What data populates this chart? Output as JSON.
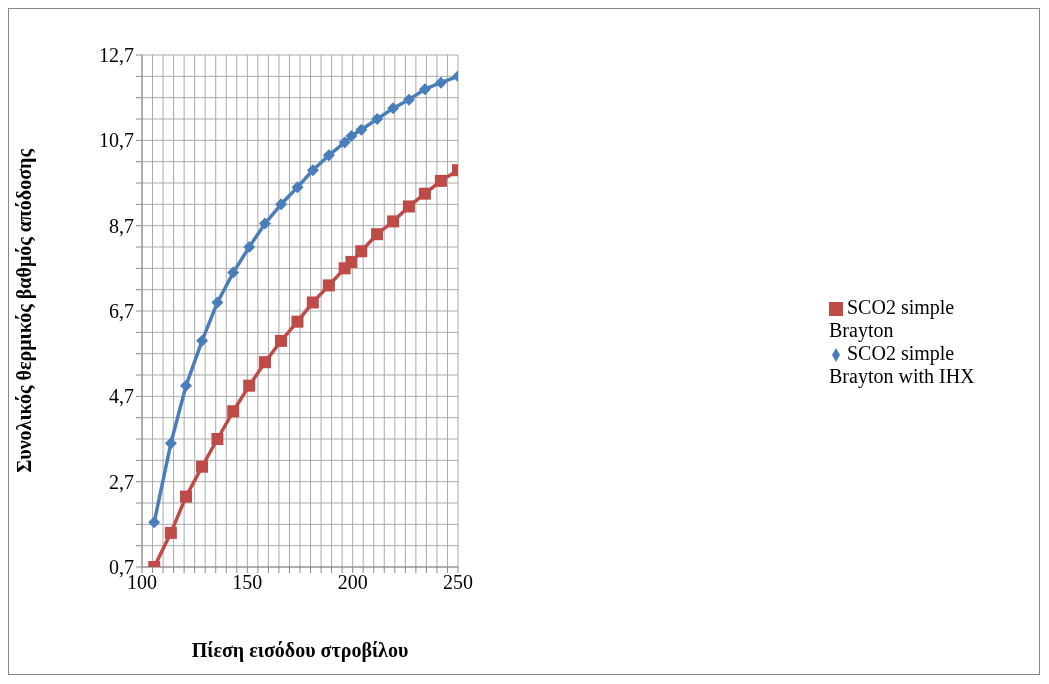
{
  "chart_data": {
    "type": "line",
    "xlabel": "Πίεση εισόδου στροβίλου",
    "ylabel": "Συνολικός θερμικός βαθμός απόδοσης",
    "x": [
      105.8,
      113.7,
      120.9,
      128.5,
      135.8,
      143.3,
      150.9,
      158.4,
      166,
      173.8,
      181.1,
      188.7,
      196.2,
      199.4,
      204.1,
      211.6,
      219.2,
      226.7,
      234.3,
      241.9,
      250
    ],
    "series": [
      {
        "name": "SCO2 simple Brayton with IHX",
        "color": "#4a7ebb",
        "marker": "diamond",
        "values": [
          1.75,
          3.6,
          4.95,
          6,
          6.9,
          7.6,
          8.2,
          8.75,
          9.2,
          9.6,
          10,
          10.35,
          10.65,
          10.8,
          10.95,
          11.2,
          11.45,
          11.65,
          11.9,
          12.05,
          12.2
        ]
      },
      {
        "name": "SCO2 simple Brayton",
        "color": "#be4b48",
        "marker": "square",
        "values": [
          0.7,
          1.5,
          2.35,
          3.05,
          3.7,
          4.35,
          4.95,
          5.5,
          6,
          6.45,
          6.9,
          7.3,
          7.7,
          7.85,
          8.1,
          8.5,
          8.8,
          9.15,
          9.45,
          9.75,
          10
        ]
      }
    ],
    "xlim": [
      100,
      250
    ],
    "xticks": [
      100,
      {
        "value": 105,
        "label": null
      },
      {
        "value": 110,
        "label": null
      },
      {
        "value": 115,
        "label": null
      },
      {
        "value": 120,
        "label": null
      },
      {
        "value": 125,
        "label": null
      },
      {
        "value": 130,
        "label": null
      },
      {
        "value": 135,
        "label": null
      },
      {
        "value": 140,
        "label": null
      },
      {
        "value": 145,
        "label": null
      },
      150,
      {
        "value": 155,
        "label": null
      },
      {
        "value": 160,
        "label": null
      },
      {
        "value": 165,
        "label": null
      },
      {
        "value": 170,
        "label": null
      },
      {
        "value": 175,
        "label": null
      },
      {
        "value": 180,
        "label": null
      },
      {
        "value": 185,
        "label": null
      },
      {
        "value": 190,
        "label": null
      },
      {
        "value": 195,
        "label": null
      },
      200,
      {
        "value": 205,
        "label": null
      },
      {
        "value": 210,
        "label": null
      },
      {
        "value": 215,
        "label": null
      },
      {
        "value": 220,
        "label": null
      },
      {
        "value": 225,
        "label": null
      },
      {
        "value": 230,
        "label": null
      },
      {
        "value": 235,
        "label": null
      },
      {
        "value": 240,
        "label": null
      },
      {
        "value": 245,
        "label": null
      },
      250
    ],
    "ylim": [
      0.7,
      12.7
    ],
    "yticks": [
      {
        "value": 0.7,
        "label": "0,7"
      },
      {
        "value": 1.2,
        "label": null
      },
      {
        "value": 1.7,
        "label": null
      },
      {
        "value": 2.2,
        "label": null
      },
      {
        "value": 2.7,
        "label": "2,7"
      },
      {
        "value": 3.2,
        "label": null
      },
      {
        "value": 3.7,
        "label": null
      },
      {
        "value": 4.2,
        "label": null
      },
      {
        "value": 4.7,
        "label": "4,7"
      },
      {
        "value": 5.2,
        "label": null
      },
      {
        "value": 5.7,
        "label": null
      },
      {
        "value": 6.2,
        "label": null
      },
      {
        "value": 6.7,
        "label": "6,7"
      },
      {
        "value": 7.2,
        "label": null
      },
      {
        "value": 7.7,
        "label": null
      },
      {
        "value": 8.2,
        "label": null
      },
      {
        "value": 8.7,
        "label": "8,7"
      },
      {
        "value": 9.2,
        "label": null
      },
      {
        "value": 9.7,
        "label": null
      },
      {
        "value": 10.2,
        "label": null
      },
      {
        "value": 10.7,
        "label": "10,7"
      },
      {
        "value": 11.2,
        "label": null
      },
      {
        "value": 11.7,
        "label": null
      },
      {
        "value": 12.2,
        "label": null
      },
      {
        "value": 12.7,
        "label": "12,7"
      }
    ],
    "grid": true,
    "legend": "right",
    "line_style": "solid"
  }
}
